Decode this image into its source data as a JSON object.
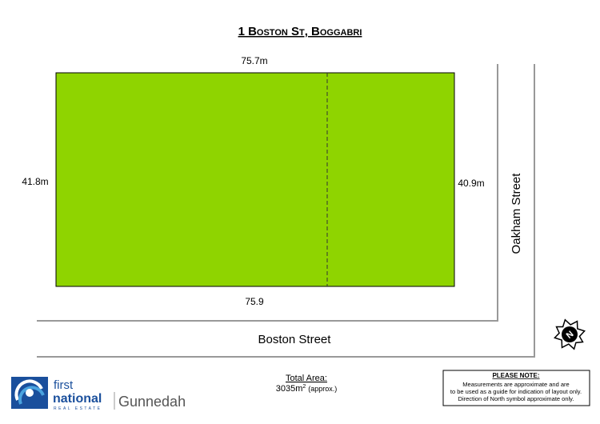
{
  "title": "1 Boston St, Boggabri",
  "lot": {
    "top": "75.7m",
    "left": "41.8m",
    "right": "40.9m",
    "bottom": "75.9"
  },
  "streets": {
    "south": "Boston Street",
    "east": "Oakham Street"
  },
  "area": {
    "label": "Total Area:",
    "value": "3035m",
    "unit_power": "2",
    "note": "(approx.)"
  },
  "compass": "N",
  "note": {
    "heading": "PLEASE NOTE:",
    "lines": [
      "Measurements are approximate and are",
      "to be used as a guide for indication of layout only.",
      "Direction of North symbol approximate only."
    ]
  },
  "logo": {
    "first": "first",
    "national": "national",
    "tagline": "REAL ESTATE",
    "office": "Gunnedah"
  }
}
